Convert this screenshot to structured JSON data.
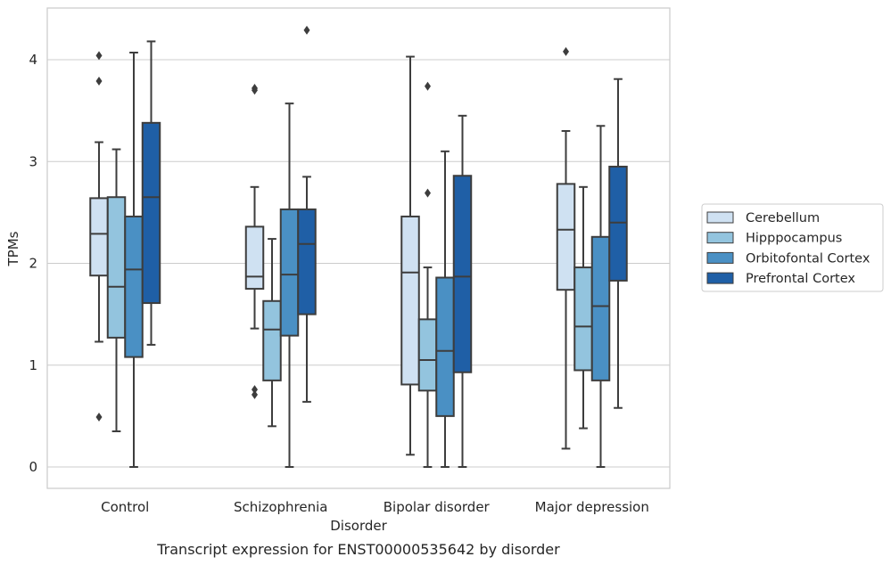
{
  "chart_data": {
    "type": "boxplot",
    "caption": "Transcript expression for ENST00000535642 by disorder",
    "xlabel": "Disorder",
    "ylabel": "TPMs",
    "ylim": [
      -0.2,
      4.5
    ],
    "yticks": [
      0,
      1,
      2,
      3,
      4
    ],
    "grid": "horizontal",
    "legend_position": "right",
    "categories": [
      "Control",
      "Schizophrenia",
      "Bipolar disorder",
      "Major depression"
    ],
    "series": [
      {
        "name": "Cerebellum",
        "color": "#cfe1f2",
        "boxes": [
          {
            "whisker_low": 1.23,
            "q1": 1.88,
            "median": 2.29,
            "q3": 2.64,
            "whisker_high": 3.19,
            "outliers": [
              4.04,
              3.79,
              0.49
            ]
          },
          {
            "whisker_low": 1.36,
            "q1": 1.75,
            "median": 1.87,
            "q3": 2.36,
            "whisker_high": 2.75,
            "outliers": [
              3.72,
              3.7,
              0.76,
              0.71
            ]
          },
          {
            "whisker_low": 0.12,
            "q1": 0.81,
            "median": 1.91,
            "q3": 2.46,
            "whisker_high": 4.03,
            "outliers": []
          },
          {
            "whisker_low": 0.18,
            "q1": 1.74,
            "median": 2.33,
            "q3": 2.78,
            "whisker_high": 3.3,
            "outliers": [
              4.08
            ]
          }
        ]
      },
      {
        "name": "Hipppocampus",
        "color": "#93c4de",
        "boxes": [
          {
            "whisker_low": 0.35,
            "q1": 1.27,
            "median": 1.77,
            "q3": 2.65,
            "whisker_high": 3.12,
            "outliers": []
          },
          {
            "whisker_low": 0.4,
            "q1": 0.85,
            "median": 1.35,
            "q3": 1.63,
            "whisker_high": 2.24,
            "outliers": []
          },
          {
            "whisker_low": 0.0,
            "q1": 0.75,
            "median": 1.05,
            "q3": 1.45,
            "whisker_high": 1.96,
            "outliers": [
              3.74,
              2.69
            ]
          },
          {
            "whisker_low": 0.38,
            "q1": 0.95,
            "median": 1.38,
            "q3": 1.96,
            "whisker_high": 2.75,
            "outliers": []
          }
        ]
      },
      {
        "name": "Orbitofontal Cortex",
        "color": "#4a90c4",
        "boxes": [
          {
            "whisker_low": 0.0,
            "q1": 1.08,
            "median": 1.94,
            "q3": 2.46,
            "whisker_high": 4.07,
            "outliers": []
          },
          {
            "whisker_low": 0.0,
            "q1": 1.29,
            "median": 1.89,
            "q3": 2.53,
            "whisker_high": 3.57,
            "outliers": []
          },
          {
            "whisker_low": 0.0,
            "q1": 0.5,
            "median": 1.14,
            "q3": 1.86,
            "whisker_high": 3.1,
            "outliers": []
          },
          {
            "whisker_low": 0.0,
            "q1": 0.85,
            "median": 1.58,
            "q3": 2.26,
            "whisker_high": 3.35,
            "outliers": []
          }
        ]
      },
      {
        "name": "Prefrontal Cortex",
        "color": "#1f5fa6",
        "boxes": [
          {
            "whisker_low": 1.2,
            "q1": 1.61,
            "median": 2.65,
            "q3": 3.38,
            "whisker_high": 4.18,
            "outliers": []
          },
          {
            "whisker_low": 0.64,
            "q1": 1.5,
            "median": 2.19,
            "q3": 2.53,
            "whisker_high": 2.85,
            "outliers": [
              4.29
            ]
          },
          {
            "whisker_low": 0.0,
            "q1": 0.93,
            "median": 1.87,
            "q3": 2.86,
            "whisker_high": 3.45,
            "outliers": []
          },
          {
            "whisker_low": 0.58,
            "q1": 1.83,
            "median": 2.4,
            "q3": 2.95,
            "whisker_high": 3.81,
            "outliers": []
          }
        ]
      }
    ]
  }
}
